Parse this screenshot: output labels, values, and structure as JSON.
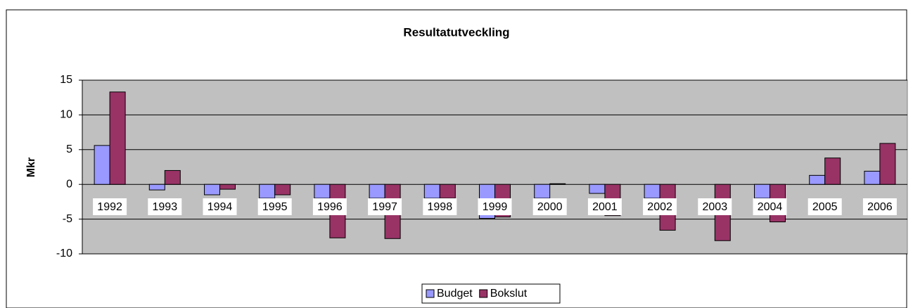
{
  "chart_data": {
    "type": "bar",
    "title": "Resultatutveckling",
    "y_label": "Mkr",
    "categories": [
      "1992",
      "1993",
      "1994",
      "1995",
      "1996",
      "1997",
      "1998",
      "1999",
      "2000",
      "2001",
      "2002",
      "2003",
      "2004",
      "2005",
      "2006"
    ],
    "series": [
      {
        "name": "Budget",
        "color": "#9999ff",
        "values": [
          5.6,
          -0.8,
          -1.5,
          -2,
          -2,
          -2,
          -2,
          -4.9,
          -2,
          -1.3,
          -2,
          0,
          -2,
          1.3,
          1.9
        ]
      },
      {
        "name": "Bokslut",
        "color": "#993366",
        "values": [
          13.3,
          2,
          -0.7,
          -1.5,
          -7.7,
          -7.8,
          -2,
          -4.7,
          0.1,
          -4.5,
          -6.6,
          -8.1,
          -5.4,
          3.8,
          5.9
        ]
      }
    ],
    "ylim": [
      -10,
      15
    ],
    "yticks": [
      -10,
      -5,
      0,
      5,
      10,
      15
    ],
    "grid": true,
    "legend": "bottom"
  }
}
